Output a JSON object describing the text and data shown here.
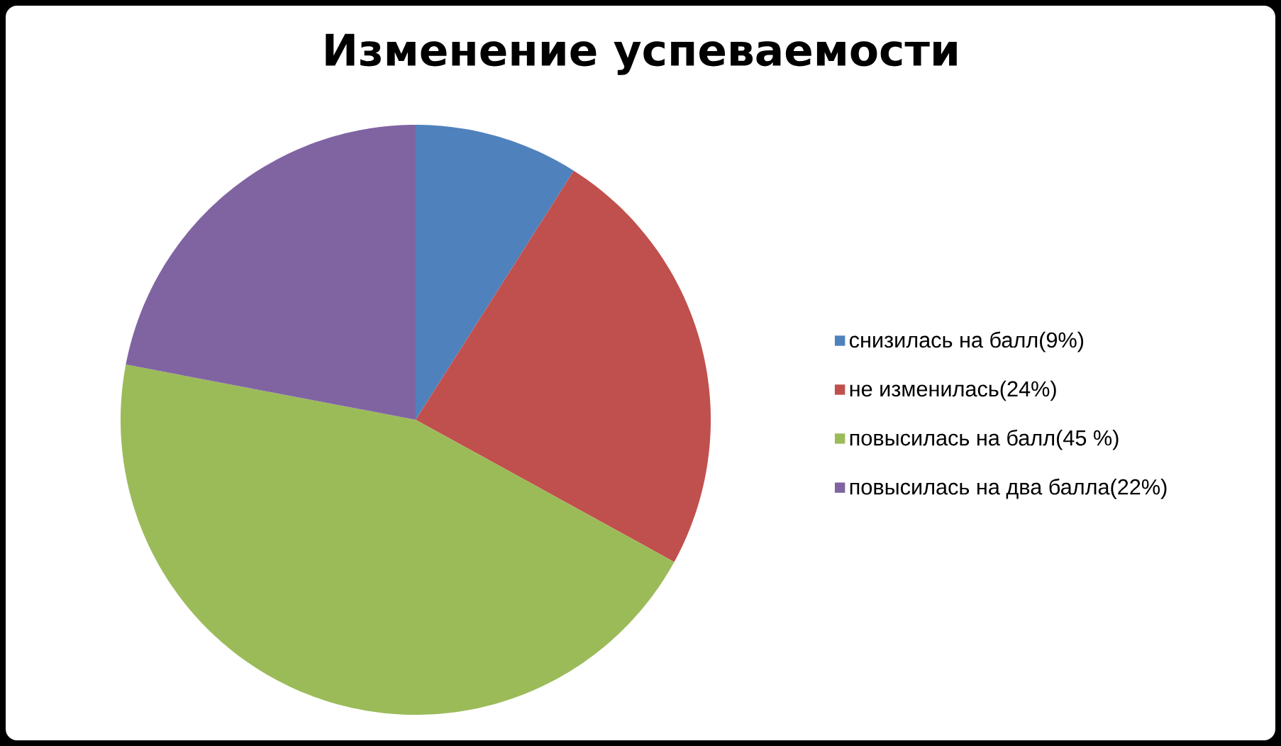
{
  "chart_data": {
    "type": "pie",
    "title": "Изменение успеваемости",
    "categories": [
      "снизилась на балл(9%)",
      "не изменилась(24%)",
      "повысилась на балл(45 %)",
      "повысилась на два балла(22%)"
    ],
    "values": [
      9,
      24,
      45,
      22
    ],
    "colors": [
      "#4f81bd",
      "#c0504d",
      "#9bbb59",
      "#8064a2"
    ],
    "legend": "right"
  }
}
